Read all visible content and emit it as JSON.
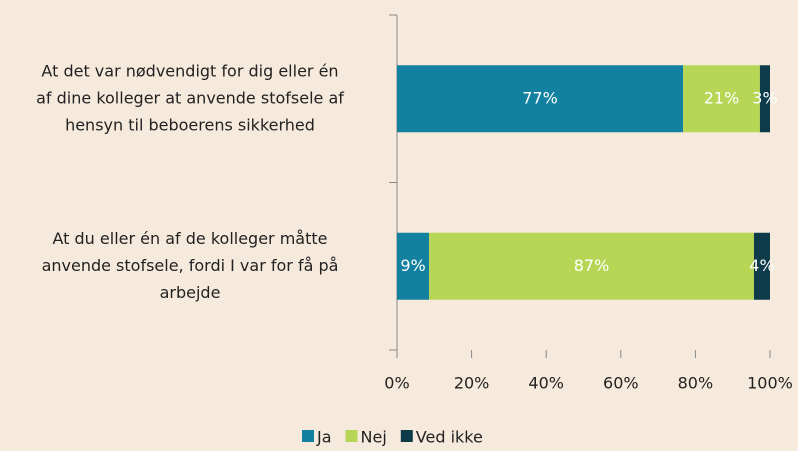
{
  "chart_data": {
    "type": "stacked_barh",
    "categories": [
      [
        "At det var nødvendigt for dig eller én",
        "af dine kolleger at anvende stofsele af",
        "hensyn til beboerens sikkerhed"
      ],
      [
        "At du eller én af de kolleger måtte",
        "anvende stofsele, fordi I var for få på",
        "arbejde"
      ]
    ],
    "series": [
      {
        "name": "Ja",
        "color": "#12809f",
        "values": [
          76.7,
          8.6
        ],
        "value_labels": [
          "77%",
          "9%"
        ]
      },
      {
        "name": "Nej",
        "color": "#b8d655",
        "values": [
          20.6,
          87.1
        ],
        "value_labels": [
          "21%",
          "87%"
        ]
      },
      {
        "name": "Ved ikke",
        "color": "#0d3b4a",
        "values": [
          2.7,
          4.3
        ],
        "value_labels": [
          "3%",
          "4%"
        ]
      }
    ],
    "xlim": [
      0,
      100
    ],
    "xticks": [
      {
        "value": 0,
        "label": "0%"
      },
      {
        "value": 20,
        "label": "20%"
      },
      {
        "value": 40,
        "label": "40%"
      },
      {
        "value": 60,
        "label": "60%"
      },
      {
        "value": 80,
        "label": "80%"
      },
      {
        "value": 100,
        "label": "100%"
      }
    ],
    "legend": "bottom"
  }
}
